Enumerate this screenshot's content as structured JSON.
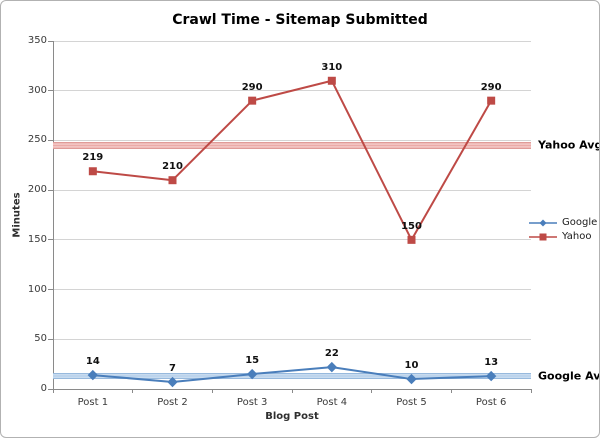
{
  "chart_data": {
    "type": "line",
    "title": "Crawl Time - Sitemap Submitted",
    "xlabel": "Blog Post",
    "ylabel": "Minutes",
    "categories": [
      "Post 1",
      "Post 2",
      "Post 3",
      "Post 4",
      "Post 5",
      "Post 6"
    ],
    "series": [
      {
        "name": "Google",
        "color": "#4a7ebb",
        "marker": "diamond",
        "values": [
          14,
          7,
          15,
          22,
          10,
          13
        ]
      },
      {
        "name": "Yahoo",
        "color": "#be4a46",
        "marker": "square",
        "values": [
          219,
          210,
          290,
          310,
          150,
          290
        ]
      }
    ],
    "reference_lines": [
      {
        "label": "Yahoo Avg",
        "value": 245,
        "band_height": 7,
        "edge_color": "#d98a87",
        "mid_color": "#e9a3a0",
        "light_color": "#f6d1cf"
      },
      {
        "label": "Google Avg",
        "value": 13.5,
        "band_height": 6,
        "edge_color": "#7fa8d4",
        "mid_color": "#a9c8e8",
        "light_color": "#d6e5f4"
      }
    ],
    "ylim": [
      0,
      350
    ],
    "yticks": [
      0,
      50,
      100,
      150,
      200,
      250,
      300,
      350
    ],
    "grid": true,
    "data_labels": true,
    "legend_position": "right",
    "axis_color": "#8a8a8a",
    "gridline_color": "#d4d4d4"
  }
}
